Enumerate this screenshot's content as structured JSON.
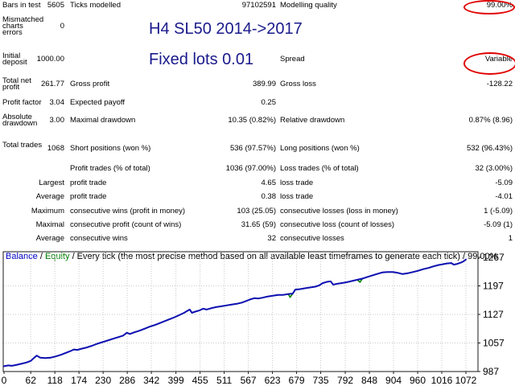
{
  "report": {
    "rows": [
      {
        "c1l": "Bars in test",
        "c1v": "5605",
        "c2l": "Ticks modelled",
        "c2v": "97102591",
        "c3l": "Modelling quality",
        "c3v": "99.00%"
      },
      {
        "c1l": "Mismatched charts errors",
        "c1v": "0",
        "c2l": "",
        "c2v": "",
        "c3l": "",
        "c3v": ""
      },
      {
        "c1l": "Initial deposit",
        "c1v": "1000.00",
        "c2l": "",
        "c2v": "",
        "c3l": "Spread",
        "c3v": "Variable"
      },
      {
        "c1l": "Total net profit",
        "c1v": "261.77",
        "c2l": "Gross profit",
        "c2v": "389.99",
        "c3l": "Gross loss",
        "c3v": "-128.22"
      },
      {
        "c1l": "Profit factor",
        "c1v": "3.04",
        "c2l": "Expected payoff",
        "c2v": "0.25",
        "c3l": "",
        "c3v": ""
      },
      {
        "c1l": "Absolute drawdown",
        "c1v": "3.00",
        "c2l": "Maximal drawdown",
        "c2v": "10.35 (0.82%)",
        "c3l": "Relative drawdown",
        "c3v": "0.87% (8.96)"
      },
      {
        "c1l": "Total trades",
        "c1v": "1068",
        "c2l": "Short positions (won %)",
        "c2v": "536 (97.57%)",
        "c3l": "Long positions (won %)",
        "c3v": "532 (96.43%)"
      },
      {
        "c1l": "",
        "c1v": "",
        "c2l": "Profit trades (% of total)",
        "c2v": "1036 (97.00%)",
        "c3l": "Loss trades (% of total)",
        "c3v": "32 (3.00%)"
      },
      {
        "c1l": "",
        "c1v": "Largest",
        "c2l": "profit trade",
        "c2v": "4.65",
        "c3l": "loss trade",
        "c3v": "-5.09"
      },
      {
        "c1l": "",
        "c1v": "Average",
        "c2l": "profit trade",
        "c2v": "0.38",
        "c3l": "loss trade",
        "c3v": "-4.01"
      },
      {
        "c1l": "",
        "c1v": "Maximum",
        "c2l": "consecutive wins (profit in money)",
        "c2v": "103 (25.05)",
        "c3l": "consecutive losses (loss in money)",
        "c3v": "1 (-5.09)"
      },
      {
        "c1l": "",
        "c1v": "Maximal",
        "c2l": "consecutive profit (count of wins)",
        "c2v": "31.65 (59)",
        "c3l": "consecutive loss (count of losses)",
        "c3v": "-5.09 (1)"
      },
      {
        "c1l": "",
        "c1v": "Average",
        "c2l": "consecutive wins",
        "c2v": "32",
        "c3l": "consecutive losses",
        "c3v": "1"
      }
    ]
  },
  "annotations": {
    "line1": "H4 SL50 2014->2017",
    "line2": "Fixed lots 0.01",
    "text_color": "#1a1a8c",
    "highlight_color": "#e00000"
  },
  "chart_data": {
    "type": "line",
    "title_segments": [
      {
        "text": "Balance",
        "color": "#0000c8"
      },
      {
        "text": " / ",
        "color": "#000000"
      },
      {
        "text": "Equity",
        "color": "#008000"
      },
      {
        "text": " / Every tick (the most precise method based on all available least timeframes to generate each tick) / 99.00%",
        "color": "#000000"
      }
    ],
    "xlabel": "",
    "ylabel": "",
    "x_ticks": [
      0,
      62,
      118,
      174,
      230,
      286,
      342,
      399,
      455,
      511,
      567,
      623,
      679,
      735,
      792,
      848,
      904,
      960,
      1016,
      1072
    ],
    "y_ticks": [
      987,
      1057,
      1127,
      1197,
      1267
    ],
    "xlim": [
      0,
      1100
    ],
    "ylim": [
      987,
      1281
    ],
    "grid": true,
    "grid_color": "#c9c9c9",
    "legend_position": "top-left",
    "series": [
      {
        "name": "Equity",
        "color": "#008000",
        "points": [
          [
            0,
            1000
          ],
          [
            10,
            1002
          ],
          [
            18,
            1001
          ],
          [
            28,
            1003
          ],
          [
            40,
            1006
          ],
          [
            52,
            1009
          ],
          [
            62,
            1013
          ],
          [
            70,
            1021
          ],
          [
            76,
            1026
          ],
          [
            84,
            1021
          ],
          [
            96,
            1020
          ],
          [
            108,
            1021
          ],
          [
            120,
            1024
          ],
          [
            132,
            1028
          ],
          [
            144,
            1033
          ],
          [
            154,
            1037
          ],
          [
            162,
            1041
          ],
          [
            170,
            1040
          ],
          [
            180,
            1043
          ],
          [
            192,
            1046
          ],
          [
            204,
            1050
          ],
          [
            216,
            1055
          ],
          [
            228,
            1059
          ],
          [
            240,
            1063
          ],
          [
            252,
            1067
          ],
          [
            264,
            1071
          ],
          [
            276,
            1075
          ],
          [
            285,
            1082
          ],
          [
            292,
            1079
          ],
          [
            302,
            1083
          ],
          [
            314,
            1087
          ],
          [
            326,
            1092
          ],
          [
            338,
            1097
          ],
          [
            350,
            1101
          ],
          [
            362,
            1106
          ],
          [
            374,
            1111
          ],
          [
            386,
            1116
          ],
          [
            398,
            1121
          ],
          [
            408,
            1126
          ],
          [
            418,
            1131
          ],
          [
            426,
            1136
          ],
          [
            431,
            1139
          ],
          [
            436,
            1131
          ],
          [
            444,
            1134
          ],
          [
            454,
            1137
          ],
          [
            462,
            1141
          ],
          [
            470,
            1139
          ],
          [
            480,
            1142
          ],
          [
            492,
            1145
          ],
          [
            504,
            1147
          ],
          [
            516,
            1149
          ],
          [
            528,
            1151
          ],
          [
            540,
            1153
          ],
          [
            552,
            1156
          ],
          [
            562,
            1160
          ],
          [
            572,
            1164
          ],
          [
            582,
            1167
          ],
          [
            590,
            1166
          ],
          [
            600,
            1168
          ],
          [
            612,
            1171
          ],
          [
            624,
            1173
          ],
          [
            636,
            1175
          ],
          [
            648,
            1175
          ],
          [
            660,
            1177
          ],
          [
            664,
            1169
          ],
          [
            670,
            1178
          ],
          [
            676,
            1188
          ],
          [
            686,
            1189
          ],
          [
            698,
            1191
          ],
          [
            710,
            1193
          ],
          [
            722,
            1195
          ],
          [
            731,
            1198
          ],
          [
            740,
            1204
          ],
          [
            750,
            1207
          ],
          [
            758,
            1208
          ],
          [
            764,
            1200
          ],
          [
            772,
            1202
          ],
          [
            784,
            1204
          ],
          [
            796,
            1206
          ],
          [
            808,
            1209
          ],
          [
            820,
            1212
          ],
          [
            826,
            1206
          ],
          [
            832,
            1215
          ],
          [
            844,
            1219
          ],
          [
            856,
            1223
          ],
          [
            868,
            1227
          ],
          [
            878,
            1230
          ],
          [
            890,
            1231
          ],
          [
            902,
            1231
          ],
          [
            914,
            1229
          ],
          [
            925,
            1226
          ],
          [
            937,
            1228
          ],
          [
            949,
            1231
          ],
          [
            961,
            1234
          ],
          [
            973,
            1238
          ],
          [
            985,
            1241
          ],
          [
            997,
            1245
          ],
          [
            1008,
            1248
          ],
          [
            1018,
            1250
          ],
          [
            1028,
            1252
          ],
          [
            1038,
            1253
          ],
          [
            1044,
            1249
          ],
          [
            1052,
            1251
          ],
          [
            1060,
            1254
          ],
          [
            1066,
            1257
          ],
          [
            1072,
            1261.77
          ]
        ]
      },
      {
        "name": "Balance",
        "color": "#0f0fb4",
        "points": [
          [
            0,
            1000
          ],
          [
            10,
            1002
          ],
          [
            18,
            1001
          ],
          [
            28,
            1003
          ],
          [
            40,
            1006
          ],
          [
            52,
            1009
          ],
          [
            62,
            1013
          ],
          [
            70,
            1021
          ],
          [
            76,
            1026
          ],
          [
            84,
            1021
          ],
          [
            96,
            1020
          ],
          [
            108,
            1021
          ],
          [
            120,
            1024
          ],
          [
            132,
            1028
          ],
          [
            144,
            1033
          ],
          [
            154,
            1037
          ],
          [
            162,
            1041
          ],
          [
            170,
            1040
          ],
          [
            180,
            1043
          ],
          [
            192,
            1046
          ],
          [
            204,
            1050
          ],
          [
            216,
            1055
          ],
          [
            228,
            1059
          ],
          [
            240,
            1063
          ],
          [
            252,
            1067
          ],
          [
            264,
            1071
          ],
          [
            276,
            1075
          ],
          [
            285,
            1082
          ],
          [
            292,
            1079
          ],
          [
            302,
            1083
          ],
          [
            314,
            1087
          ],
          [
            326,
            1092
          ],
          [
            338,
            1097
          ],
          [
            350,
            1101
          ],
          [
            362,
            1106
          ],
          [
            374,
            1111
          ],
          [
            386,
            1116
          ],
          [
            398,
            1121
          ],
          [
            408,
            1126
          ],
          [
            418,
            1131
          ],
          [
            426,
            1136
          ],
          [
            431,
            1139
          ],
          [
            436,
            1131
          ],
          [
            444,
            1134
          ],
          [
            454,
            1137
          ],
          [
            462,
            1141
          ],
          [
            470,
            1139
          ],
          [
            480,
            1142
          ],
          [
            492,
            1145
          ],
          [
            504,
            1147
          ],
          [
            516,
            1149
          ],
          [
            528,
            1151
          ],
          [
            540,
            1153
          ],
          [
            552,
            1156
          ],
          [
            562,
            1160
          ],
          [
            572,
            1164
          ],
          [
            582,
            1167
          ],
          [
            590,
            1166
          ],
          [
            600,
            1168
          ],
          [
            612,
            1171
          ],
          [
            624,
            1173
          ],
          [
            636,
            1175
          ],
          [
            648,
            1175
          ],
          [
            660,
            1177
          ],
          [
            670,
            1178
          ],
          [
            676,
            1188
          ],
          [
            686,
            1189
          ],
          [
            698,
            1191
          ],
          [
            710,
            1193
          ],
          [
            722,
            1195
          ],
          [
            731,
            1198
          ],
          [
            740,
            1204
          ],
          [
            750,
            1207
          ],
          [
            758,
            1208
          ],
          [
            764,
            1200
          ],
          [
            772,
            1202
          ],
          [
            784,
            1204
          ],
          [
            796,
            1206
          ],
          [
            808,
            1209
          ],
          [
            820,
            1212
          ],
          [
            832,
            1215
          ],
          [
            844,
            1219
          ],
          [
            856,
            1223
          ],
          [
            868,
            1227
          ],
          [
            878,
            1230
          ],
          [
            890,
            1231
          ],
          [
            902,
            1231
          ],
          [
            914,
            1229
          ],
          [
            925,
            1226
          ],
          [
            937,
            1228
          ],
          [
            949,
            1231
          ],
          [
            961,
            1234
          ],
          [
            973,
            1238
          ],
          [
            985,
            1241
          ],
          [
            997,
            1245
          ],
          [
            1008,
            1248
          ],
          [
            1018,
            1250
          ],
          [
            1028,
            1252
          ],
          [
            1038,
            1253
          ],
          [
            1044,
            1249
          ],
          [
            1052,
            1251
          ],
          [
            1060,
            1254
          ],
          [
            1066,
            1257
          ],
          [
            1072,
            1261.77
          ]
        ]
      }
    ]
  }
}
